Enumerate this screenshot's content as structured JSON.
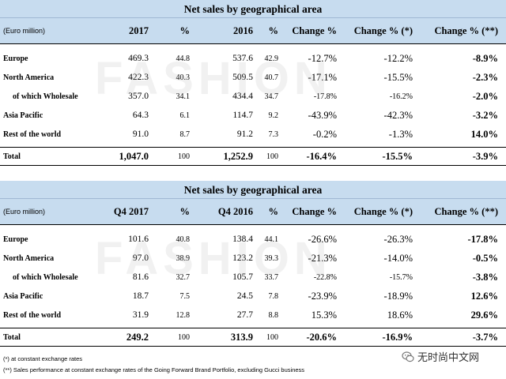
{
  "table1": {
    "title": "Net sales by geographical area",
    "unit": "(Euro million)",
    "headers": [
      "2017",
      "%",
      "2016",
      "%",
      "Change %",
      "Change % (*)",
      "Change % (**)"
    ],
    "rows": [
      {
        "label": "Europe",
        "y1": "469.3",
        "p1": "44.8",
        "y2": "537.6",
        "p2": "42.9",
        "ch": "-12.7%",
        "chs": "-12.2%",
        "chss": "-8.9%"
      },
      {
        "label": "North America",
        "y1": "422.3",
        "p1": "40.3",
        "y2": "509.5",
        "p2": "40.7",
        "ch": "-17.1%",
        "chs": "-15.5%",
        "chss": "-2.3%"
      },
      {
        "label": "of which Wholesale",
        "y1": "357.0",
        "p1": "34.1",
        "y2": "434.4",
        "p2": "34.7",
        "ch": "-17.8%",
        "chs": "-16.2%",
        "chss": "-2.0%"
      },
      {
        "label": "Asia Pacific",
        "y1": "64.3",
        "p1": "6.1",
        "y2": "114.7",
        "p2": "9.2",
        "ch": "-43.9%",
        "chs": "-42.3%",
        "chss": "-3.2%"
      },
      {
        "label": "Rest of the world",
        "y1": "91.0",
        "p1": "8.7",
        "y2": "91.2",
        "p2": "7.3",
        "ch": "-0.2%",
        "chs": "-1.3%",
        "chss": "14.0%"
      }
    ],
    "total": {
      "label": "Total",
      "y1": "1,047.0",
      "p1": "100",
      "y2": "1,252.9",
      "p2": "100",
      "ch": "-16.4%",
      "chs": "-15.5%",
      "chss": "-3.9%"
    }
  },
  "table2": {
    "title": "Net sales by geographical area",
    "unit": "(Euro million)",
    "headers": [
      "Q4 2017",
      "%",
      "Q4 2016",
      "%",
      "Change %",
      "Change % (*)",
      "Change % (**)"
    ],
    "rows": [
      {
        "label": "Europe",
        "y1": "101.6",
        "p1": "40.8",
        "y2": "138.4",
        "p2": "44.1",
        "ch": "-26.6%",
        "chs": "-26.3%",
        "chss": "-17.8%"
      },
      {
        "label": "North America",
        "y1": "97.0",
        "p1": "38.9",
        "y2": "123.2",
        "p2": "39.3",
        "ch": "-21.3%",
        "chs": "-14.0%",
        "chss": "-0.5%"
      },
      {
        "label": "of which Wholesale",
        "y1": "81.6",
        "p1": "32.7",
        "y2": "105.7",
        "p2": "33.7",
        "ch": "-22.8%",
        "chs": "-15.7%",
        "chss": "-3.8%"
      },
      {
        "label": "Asia Pacific",
        "y1": "18.7",
        "p1": "7.5",
        "y2": "24.5",
        "p2": "7.8",
        "ch": "-23.9%",
        "chs": "-18.9%",
        "chss": "12.6%"
      },
      {
        "label": "Rest of the world",
        "y1": "31.9",
        "p1": "12.8",
        "y2": "27.7",
        "p2": "8.8",
        "ch": "15.3%",
        "chs": "18.6%",
        "chss": "29.6%"
      }
    ],
    "total": {
      "label": "Total",
      "y1": "249.2",
      "p1": "100",
      "y2": "313.9",
      "p2": "100",
      "ch": "-20.6%",
      "chs": "-16.9%",
      "chss": "-3.7%"
    }
  },
  "footnotes": [
    "(*) at constant exchange rates",
    "(**) Sales performance at constant exchange rates of the Going Forward Brand Portfolio, excluding Gucci business"
  ],
  "watermark": "FASHION",
  "logo": {
    "text": "无时尚中文网",
    "icon": "wechat-icon"
  }
}
